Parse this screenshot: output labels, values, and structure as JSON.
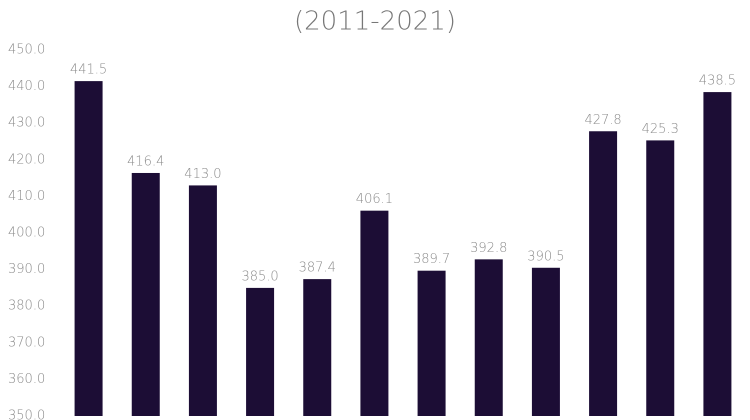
{
  "chart_data": {
    "type": "bar",
    "subtitle": "(2011-2021)",
    "categories": [
      null,
      null,
      null,
      null,
      null,
      null,
      null,
      null,
      null,
      null,
      null,
      null
    ],
    "values": [
      441.5,
      416.4,
      413.0,
      385.0,
      387.4,
      406.1,
      389.7,
      392.8,
      390.5,
      427.8,
      425.3,
      438.5
    ],
    "value_labels": [
      "441.5",
      "416.4",
      "413.0",
      "385.0",
      "387.4",
      "406.1",
      "389.7",
      "392.8",
      "390.5",
      "427.8",
      "425.3",
      "438.5"
    ],
    "color": "#1c0d35",
    "ylim": [
      350,
      450
    ],
    "yticks": [
      {
        "value": 350,
        "label": "350.0"
      },
      {
        "value": 360,
        "label": "360.0"
      },
      {
        "value": 370,
        "label": "370.0"
      },
      {
        "value": 380,
        "label": "380.0"
      },
      {
        "value": 390,
        "label": "390.0"
      },
      {
        "value": 400,
        "label": "400.0"
      },
      {
        "value": 410,
        "label": "410.0"
      },
      {
        "value": 420,
        "label": "420.0"
      },
      {
        "value": 430,
        "label": "430.0"
      },
      {
        "value": 440,
        "label": "440.0"
      },
      {
        "value": 450,
        "label": "450.0"
      }
    ],
    "grid": false
  }
}
